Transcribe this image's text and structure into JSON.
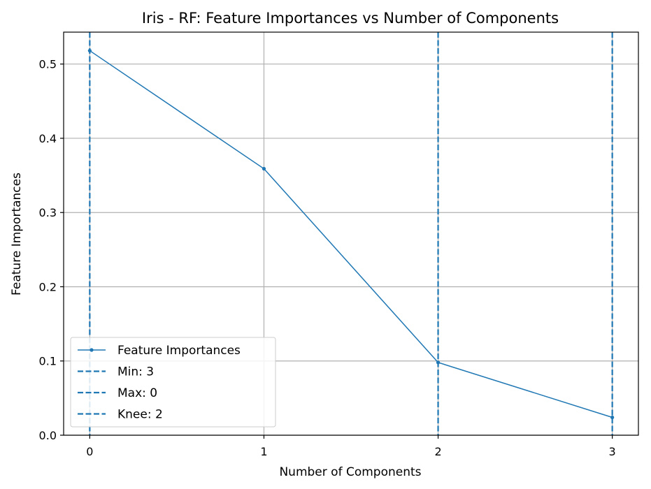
{
  "chart_data": {
    "type": "line",
    "title": "Iris - RF: Feature Importances vs Number of Components",
    "xlabel": "Number of Components",
    "ylabel": "Feature Importances",
    "xlim": [
      -0.15,
      3.15
    ],
    "ylim": [
      0,
      0.543
    ],
    "xticks": [
      0,
      1,
      2,
      3
    ],
    "xtick_labels": [
      "0",
      "1",
      "2",
      "3"
    ],
    "yticks": [
      0.0,
      0.1,
      0.2,
      0.3,
      0.4,
      0.5
    ],
    "ytick_labels": [
      "0.0",
      "0.1",
      "0.2",
      "0.3",
      "0.4",
      "0.5"
    ],
    "grid": true,
    "legend_position": "lower-left",
    "series": [
      {
        "name": "Feature Importances",
        "x": [
          0,
          1,
          2,
          3
        ],
        "values": [
          0.518,
          0.359,
          0.098,
          0.024
        ],
        "color": "#1f77b4",
        "marker": "dot"
      }
    ],
    "vlines": [
      {
        "name": "Min: 3",
        "x": 3,
        "color": "#1f77b4",
        "style": "dashed"
      },
      {
        "name": "Max: 0",
        "x": 0,
        "color": "#1f77b4",
        "style": "dashed"
      },
      {
        "name": "Knee: 2",
        "x": 2,
        "color": "#1f77b4",
        "style": "dashed"
      }
    ]
  }
}
